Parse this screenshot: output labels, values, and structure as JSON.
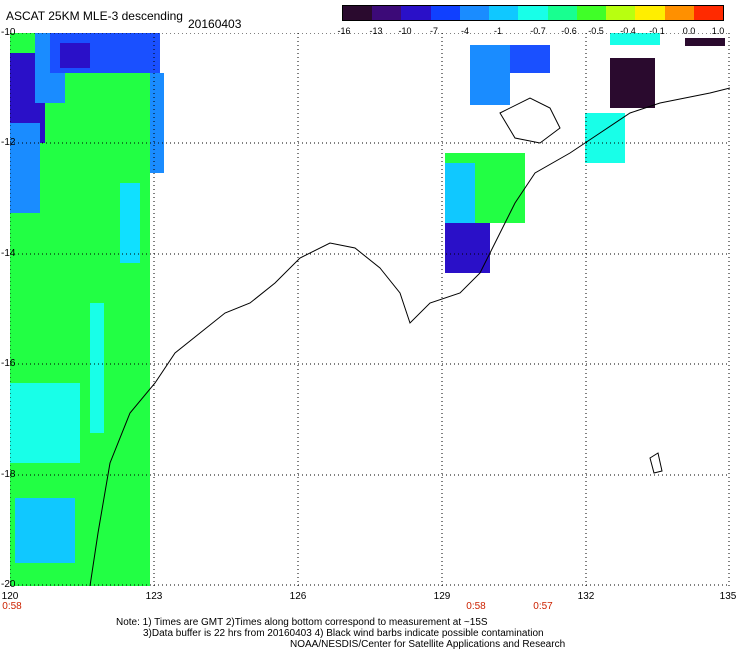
{
  "header": {
    "title": "ASCAT 25KM MLE-3 descending",
    "date": "20160403"
  },
  "colorbar": {
    "labels": [
      "-16",
      "-13",
      "-10",
      "-7",
      "-4",
      "-1",
      "-0.7",
      "-0.6",
      "-0.5",
      "-0.4",
      "-0.1",
      "0.0",
      "1.0"
    ],
    "colors": [
      "#2a0a2e",
      "#3c0a78",
      "#2a10c8",
      "#1040ff",
      "#1a8cff",
      "#10c8ff",
      "#18ffe8",
      "#18ff90",
      "#40ff28",
      "#b8ff10",
      "#ffee00",
      "#ff9000",
      "#ff2a00"
    ]
  },
  "axes": {
    "y_labels": [
      "-10",
      "-12",
      "-14",
      "-16",
      "-18",
      "-20"
    ],
    "x_labels": [
      "120",
      "123",
      "126",
      "129",
      "132",
      "135"
    ]
  },
  "time_labels": [
    "0:58",
    "0:58",
    "0:57"
  ],
  "notes": {
    "line1": "Note: 1) Times are GMT 2)Times along bottom correspond to measurement at ~15S",
    "line2": "3)Data buffer is 22 hrs from 20160403 4) Black wind barbs indicate possible contamination",
    "line3": "NOAA/NESDIS/Center for Satellite Applications and Research"
  }
}
